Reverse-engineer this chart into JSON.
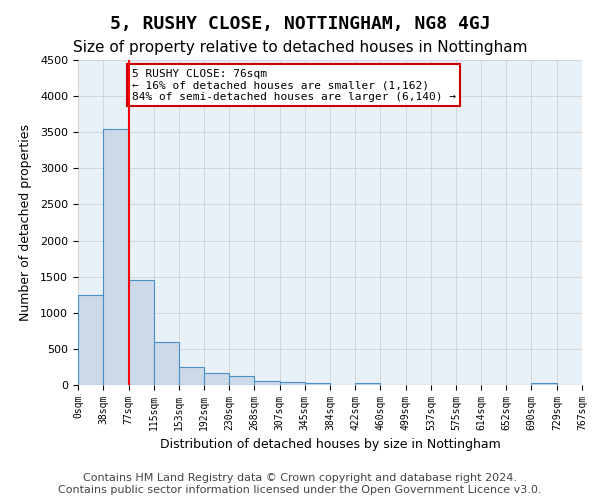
{
  "title": "5, RUSHY CLOSE, NOTTINGHAM, NG8 4GJ",
  "subtitle": "Size of property relative to detached houses in Nottingham",
  "xlabel": "Distribution of detached houses by size in Nottingham",
  "ylabel": "Number of detached properties",
  "bar_values": [
    1250,
    3550,
    1450,
    600,
    250,
    160,
    120,
    60,
    40,
    30,
    0,
    30,
    0,
    0,
    0,
    0,
    0,
    0,
    30,
    0
  ],
  "bin_edges": [
    0,
    38,
    77,
    115,
    153,
    192,
    230,
    268,
    307,
    345,
    384,
    422,
    460,
    499,
    537,
    575,
    614,
    652,
    690,
    729,
    767
  ],
  "bar_color": "#ccd9e8",
  "bar_edge_color": "#4a90c8",
  "red_line_x": 77,
  "annotation_text": "5 RUSHY CLOSE: 76sqm\n← 16% of detached houses are smaller (1,162)\n84% of semi-detached houses are larger (6,140) →",
  "annotation_box_color": "#ffffff",
  "annotation_box_edge": "#cc0000",
  "ylim": [
    0,
    4500
  ],
  "yticks": [
    0,
    500,
    1000,
    1500,
    2000,
    2500,
    3000,
    3500,
    4000,
    4500
  ],
  "background_color": "#ffffff",
  "plot_bg_color": "#e8f0f8",
  "grid_color": "#cccccc",
  "title_fontsize": 13,
  "subtitle_fontsize": 11,
  "footer_text": "Contains HM Land Registry data © Crown copyright and database right 2024.\nContains public sector information licensed under the Open Government Licence v3.0.",
  "footer_fontsize": 8
}
